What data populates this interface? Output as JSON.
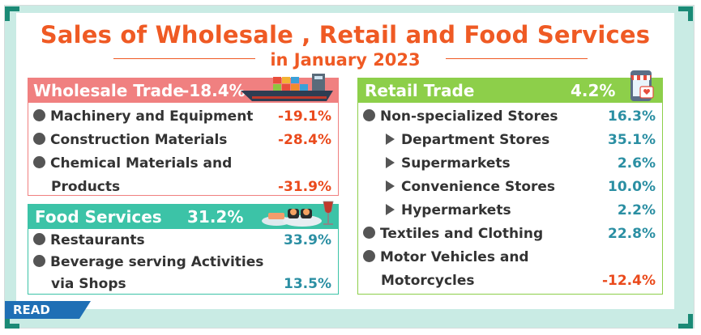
{
  "title_line1": "Sales of  Wholesale , Retail and Food  Services",
  "title_line2": "in January 2023",
  "wholesale": {
    "label": "Wholesale Trade",
    "value": "-18.4%",
    "rows": [
      {
        "label": "Machinery and Equipment",
        "value": "-19.1%"
      },
      {
        "label": "Construction Materials",
        "value": "-28.4%"
      },
      {
        "label": "Chemical Materials and",
        "value": ""
      },
      {
        "label": "Products",
        "value": "-31.9%"
      }
    ]
  },
  "food": {
    "label": "Food  Services",
    "value": "31.2%",
    "rows": [
      {
        "label": "Restaurants",
        "value": "33.9%"
      },
      {
        "label": "Beverage serving Activities",
        "value": ""
      },
      {
        "label": "via Shops",
        "value": "13.5%"
      }
    ]
  },
  "retail": {
    "label": "Retail  Trade",
    "value": "4.2%",
    "rows": [
      {
        "label": "Non-specialized Stores",
        "value": "16.3%"
      },
      {
        "label": "Department Stores",
        "value": "35.1%"
      },
      {
        "label": "Supermarkets",
        "value": "2.6%"
      },
      {
        "label": "Convenience Stores",
        "value": "10.0%"
      },
      {
        "label": "Hypermarkets",
        "value": "2.2%"
      },
      {
        "label": "Textiles and Clothing",
        "value": "22.8%"
      },
      {
        "label": "Motor Vehicles and",
        "value": ""
      },
      {
        "label": "Motorcycles",
        "value": "-12.4%"
      }
    ]
  },
  "read_label": "READ",
  "colors": {
    "title": "#ef5a24",
    "wholesale_header": "#f08080",
    "food_header": "#3cc3a7",
    "retail_header": "#8dcf4a",
    "negative": "#ea4a1c",
    "positive": "#2b8fa3",
    "frame": "#c9ebe4",
    "corner": "#1b8a76"
  },
  "icons": [
    "cargo-ship-icon",
    "sushi-wine-icon",
    "shop-phone-icon"
  ]
}
